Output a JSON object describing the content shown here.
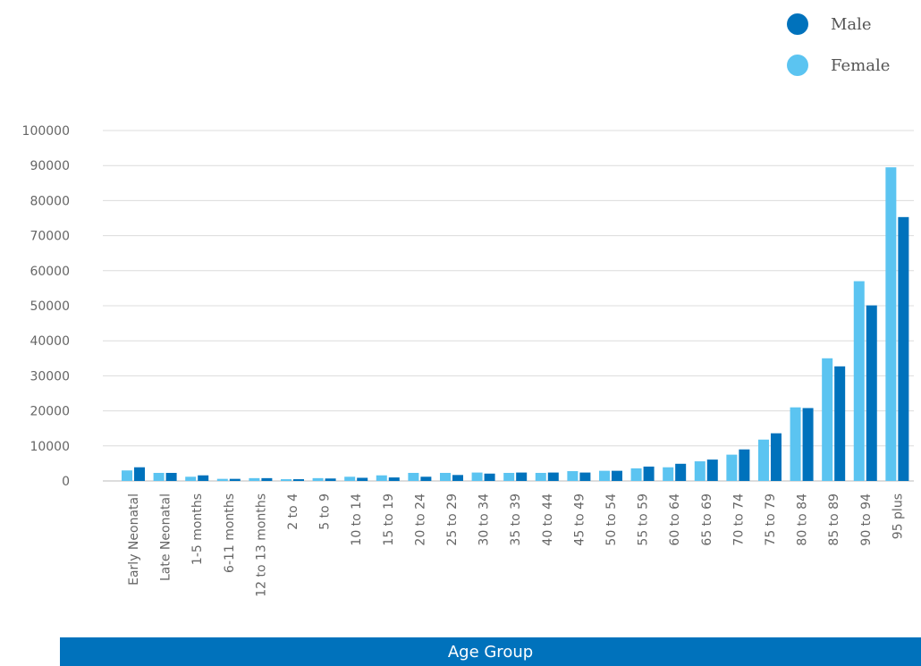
{
  "chart_data": {
    "type": "bar",
    "title": "",
    "xlabel": "Age Group",
    "ylabel": "",
    "ylim": [
      0,
      100000
    ],
    "yticks": [
      0,
      10000,
      20000,
      30000,
      40000,
      50000,
      60000,
      70000,
      80000,
      90000,
      100000
    ],
    "grid": true,
    "legend_position": "top-right",
    "categories": [
      "Early Neonatal",
      "Late Neonatal",
      "1-5 months",
      "6-11 months",
      "12 to 13 months",
      "2 to 4",
      "5 to 9",
      "10 to 14",
      "15 to 19",
      "20 to 24",
      "25 to 29",
      "30 to 34",
      "35 to 39",
      "40 to 44",
      "45 to 49",
      "50 to 54",
      "55 to 59",
      "60 to 64",
      "65 to 69",
      "70 to 74",
      "75 to 79",
      "80 to 84",
      "85 to 89",
      "90 to 94",
      "95 plus"
    ],
    "series": [
      {
        "name": "Female",
        "color": "#5bc4f1",
        "values": [
          3000,
          2300,
          1200,
          600,
          800,
          500,
          800,
          1200,
          1600,
          2300,
          2300,
          2400,
          2300,
          2300,
          2800,
          2900,
          3600,
          3900,
          5600,
          7500,
          11800,
          21000,
          35000,
          57000,
          89500
        ]
      },
      {
        "name": "Male",
        "color": "#0072bc",
        "values": [
          3900,
          2300,
          1600,
          600,
          800,
          500,
          700,
          900,
          1000,
          1200,
          1700,
          2100,
          2400,
          2400,
          2400,
          2900,
          4100,
          4900,
          6100,
          9000,
          13600,
          20800,
          32700,
          50100,
          75300
        ]
      }
    ]
  },
  "legend": {
    "items": [
      {
        "label": "Male",
        "color": "#0072bc"
      },
      {
        "label": "Female",
        "color": "#5bc4f1"
      }
    ]
  },
  "banner_color": "#0072bc"
}
